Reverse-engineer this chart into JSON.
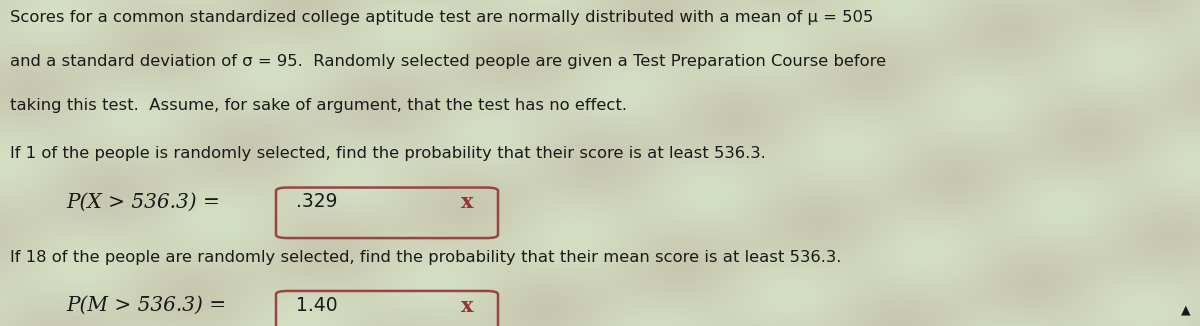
{
  "bg_color": "#c8c8b0",
  "bg_color_light": "#d8dfc8",
  "text_color": "#1a1a1a",
  "red_color": "#993333",
  "box_border_color": "#994444",
  "line1": "Scores for a common standardized college aptitude test are normally distributed with a mean of μ = 505",
  "line2": "and a standard deviation of σ = 95.  Randomly selected people are given a Test Preparation Course before",
  "line3": "taking this test.  Assume, for sake of argument, that the test has no effect.",
  "line4": "If 1 of the people is randomly selected, find the probability that their score is at least 536.3.",
  "eq1_prefix": "P(X > 536.3) = ",
  "eq1_value": ".329",
  "eq2_prefix": "P(M > 536.3) = ",
  "eq2_value": "1.40",
  "line5": "If 18 of the people are randomly selected, find the probability that their mean score is at least 536.3.",
  "font_size_body": 11.8,
  "font_size_eq": 14.5,
  "font_size_box_val": 13.5,
  "font_size_x": 15.0
}
